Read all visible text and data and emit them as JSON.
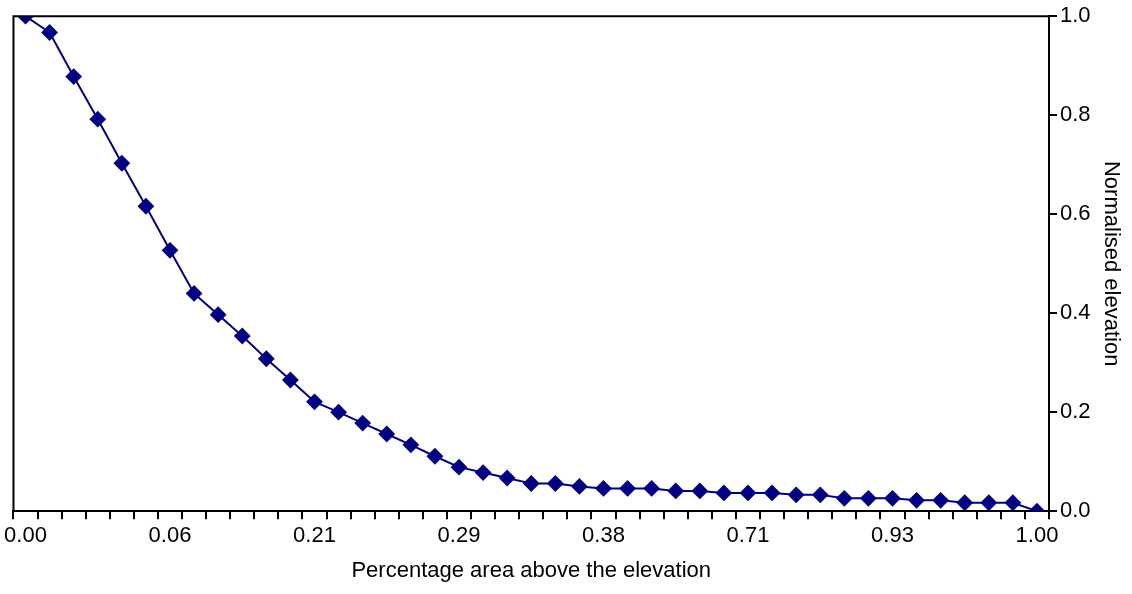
{
  "chart_data": {
    "type": "line",
    "xlabel": "Percentage area above the elevation",
    "ylabel": "Normalised elevation",
    "categories": [
      "0.00",
      null,
      null,
      null,
      null,
      null,
      "0.06",
      null,
      null,
      null,
      null,
      null,
      "0.21",
      null,
      null,
      null,
      null,
      null,
      "0.29",
      null,
      null,
      null,
      null,
      null,
      "0.38",
      null,
      null,
      null,
      null,
      null,
      "0.71",
      null,
      null,
      null,
      null,
      null,
      "0.93",
      null,
      null,
      null,
      null,
      null,
      "1.00"
    ],
    "series": [
      {
        "color": "#000080",
        "values": [
          1.0,
          0.967,
          0.878,
          0.792,
          0.703,
          0.616,
          0.527,
          0.44,
          0.397,
          0.354,
          0.308,
          0.265,
          0.221,
          0.2,
          0.178,
          0.156,
          0.134,
          0.111,
          0.089,
          0.078,
          0.067,
          0.056,
          0.056,
          0.05,
          0.046,
          0.046,
          0.046,
          0.041,
          0.041,
          0.037,
          0.037,
          0.037,
          0.033,
          0.033,
          0.026,
          0.026,
          0.026,
          0.022,
          0.022,
          0.017,
          0.017,
          0.017,
          0.0
        ]
      }
    ],
    "ylim": [
      0,
      1
    ],
    "yticks": [
      {
        "value": 0,
        "label": "0.0"
      },
      {
        "value": 0.2,
        "label": "0.2"
      },
      {
        "value": 0.4,
        "label": "0.4"
      },
      {
        "value": 0.6,
        "label": "0.6"
      },
      {
        "value": 0.8,
        "label": "0.8"
      },
      {
        "value": 1,
        "label": "1.0"
      }
    ],
    "grid": false,
    "legend": false,
    "marker": "diamond",
    "line_style": "solid"
  }
}
